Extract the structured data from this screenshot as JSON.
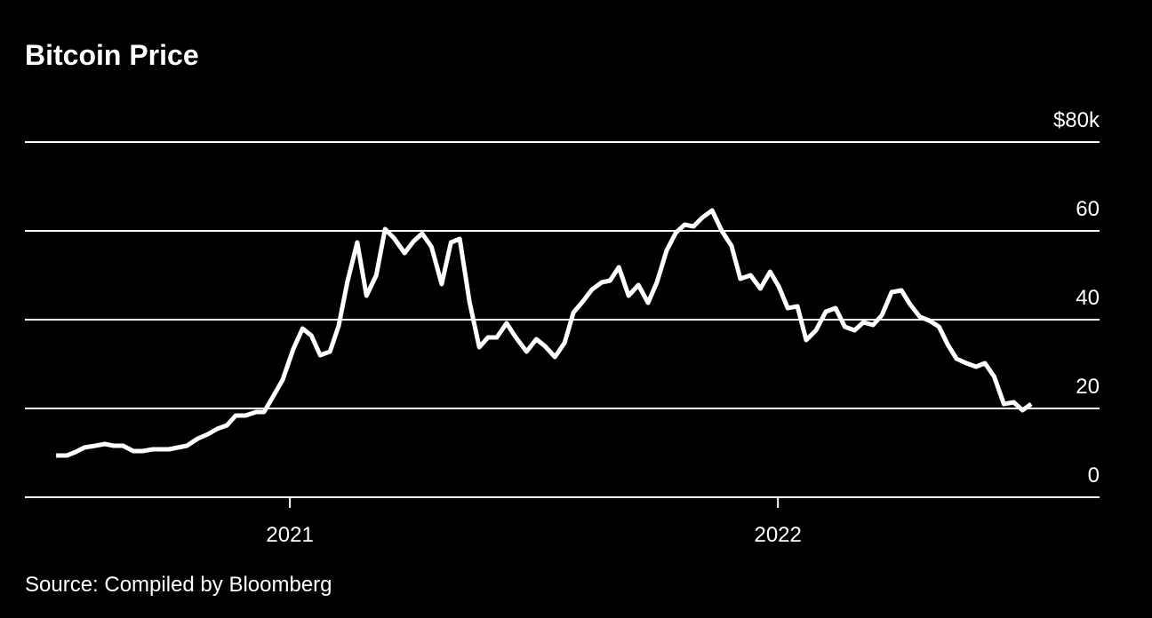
{
  "chart_data": {
    "type": "line",
    "title": "Bitcoin Price",
    "source": "Source: Compiled by Bloomberg",
    "color": "#ffffff",
    "grid": true,
    "xlim": [
      2020.457,
      2022.659
    ],
    "xticks": [
      2021,
      2022
    ],
    "ylim": [
      0,
      80
    ],
    "yticks": [
      0,
      20,
      40,
      60,
      {
        "value": 80,
        "label": "$80k"
      }
    ],
    "x": [
      2020.521,
      2020.543,
      2020.561,
      2020.579,
      2020.601,
      2020.621,
      2020.639,
      2020.658,
      2020.679,
      2020.698,
      2020.719,
      2020.752,
      2020.789,
      2020.811,
      2020.832,
      2020.851,
      2020.871,
      2020.889,
      2020.909,
      2020.931,
      2020.947,
      2020.964,
      2020.985,
      2021.007,
      2021.026,
      2021.044,
      2021.062,
      2021.082,
      2021.1,
      2021.118,
      2021.138,
      2021.157,
      2021.177,
      2021.195,
      2021.213,
      2021.235,
      2021.253,
      2021.271,
      2021.29,
      2021.311,
      2021.33,
      2021.348,
      2021.368,
      2021.388,
      2021.406,
      2021.424,
      2021.444,
      2021.463,
      2021.485,
      2021.505,
      2021.523,
      2021.543,
      2021.563,
      2021.581,
      2021.601,
      2021.619,
      2021.639,
      2021.656,
      2021.674,
      2021.694,
      2021.714,
      2021.734,
      2021.752,
      2021.772,
      2021.791,
      2021.809,
      2021.827,
      2021.845,
      2021.865,
      2021.885,
      2021.905,
      2021.923,
      2021.944,
      2021.964,
      2021.984,
      2022.002,
      2022.02,
      2022.04,
      2022.058,
      2022.078,
      2022.098,
      2022.118,
      2022.137,
      2022.157,
      2022.175,
      2022.195,
      2022.213,
      2022.233,
      2022.253,
      2022.271,
      2022.291,
      2022.31,
      2022.33,
      2022.348,
      2022.366,
      2022.386,
      2022.406,
      2022.424,
      2022.443,
      2022.463,
      2022.483,
      2022.501,
      2022.519
    ],
    "values": [
      9.4,
      9.4,
      10.2,
      11.2,
      11.6,
      12,
      11.6,
      11.6,
      10.4,
      10.4,
      10.8,
      10.8,
      11.6,
      13.2,
      14.2,
      15.4,
      16.2,
      18.4,
      18.4,
      19.2,
      19.2,
      22.4,
      26.4,
      33.4,
      38,
      36.4,
      32,
      32.8,
      38.6,
      48.6,
      57.4,
      45.4,
      50,
      60.4,
      58.4,
      55,
      57.6,
      59.4,
      56.4,
      48,
      57.4,
      58.2,
      44,
      33.8,
      36,
      36,
      39.2,
      36,
      32.8,
      35.6,
      34,
      31.6,
      34.8,
      41.6,
      44.2,
      46.8,
      48.4,
      48.8,
      51.8,
      45.4,
      47.8,
      43.8,
      48.4,
      55.6,
      59.6,
      61.4,
      61,
      63,
      64.6,
      60,
      56.6,
      49.2,
      50,
      47,
      50.8,
      47.4,
      42.6,
      43,
      35.4,
      37.6,
      41.8,
      42.6,
      38.4,
      37.6,
      39.4,
      38.8,
      41,
      46.2,
      46.6,
      43.4,
      40.6,
      39.8,
      38.4,
      34.4,
      31.2,
      30.2,
      29.4,
      30.2,
      27.2,
      21,
      21.4,
      19.6,
      21
    ]
  }
}
